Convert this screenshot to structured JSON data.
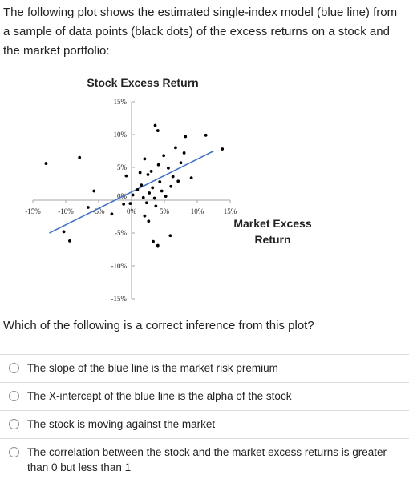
{
  "intro": "The following plot shows the estimated single-index model (blue line) from a sample of data points (black dots) of the excess returns on a stock and the market portfolio:",
  "chart_data": {
    "type": "scatter",
    "title": "Stock Excess Return",
    "xlabel": "Market Excess Return",
    "xlabel_lines": [
      "Market Excess",
      "Return"
    ],
    "ylabel": "",
    "xlim": [
      -15,
      15
    ],
    "ylim": [
      -15,
      15
    ],
    "x_ticks": [
      -15,
      -10,
      -5,
      0,
      5,
      10,
      15
    ],
    "y_ticks": [
      15,
      10,
      5,
      0,
      -5,
      -10,
      -15
    ],
    "x_tick_labels": [
      "-15%",
      "-10%",
      "-5%",
      "0%",
      "5%",
      "10%",
      "15%"
    ],
    "y_tick_labels": [
      "15%",
      "10%",
      "5%",
      "0%",
      "-5%",
      "-10%",
      "-15%"
    ],
    "grid": false,
    "line_color": "#4472c4",
    "point_color": "#000000",
    "fit_line": {
      "x": [
        -12.5,
        12.5
      ],
      "y": [
        -5.0,
        7.5
      ]
    },
    "points": [
      {
        "x": -13,
        "y": 5.6
      },
      {
        "x": -7.9,
        "y": 6.5
      },
      {
        "x": -10.3,
        "y": -4.8
      },
      {
        "x": -9.4,
        "y": -6.2
      },
      {
        "x": -6.6,
        "y": -1.1
      },
      {
        "x": -5.7,
        "y": 1.4
      },
      {
        "x": -3,
        "y": -2.1
      },
      {
        "x": -1.2,
        "y": -0.6
      },
      {
        "x": -0.8,
        "y": 3.7
      },
      {
        "x": -0.2,
        "y": -0.5
      },
      {
        "x": 0.2,
        "y": 0.8
      },
      {
        "x": 0.9,
        "y": 1.6
      },
      {
        "x": 1.3,
        "y": 4.2
      },
      {
        "x": 1.5,
        "y": 2.3
      },
      {
        "x": 1.8,
        "y": 0.4
      },
      {
        "x": 2.0,
        "y": 6.3
      },
      {
        "x": 2.3,
        "y": -0.4
      },
      {
        "x": 2.5,
        "y": 3.9
      },
      {
        "x": 2.7,
        "y": 1.1
      },
      {
        "x": 3.0,
        "y": 4.4
      },
      {
        "x": 3.2,
        "y": 1.9
      },
      {
        "x": 3.5,
        "y": 0.3
      },
      {
        "x": 3.7,
        "y": -0.9
      },
      {
        "x": 4.1,
        "y": 5.4
      },
      {
        "x": 4.3,
        "y": 2.8
      },
      {
        "x": 4.6,
        "y": 1.4
      },
      {
        "x": 4.9,
        "y": 6.8
      },
      {
        "x": 5.2,
        "y": 0.6
      },
      {
        "x": 5.6,
        "y": 4.9
      },
      {
        "x": 6.0,
        "y": 2.1
      },
      {
        "x": 6.3,
        "y": 3.6
      },
      {
        "x": 6.7,
        "y": 8.0
      },
      {
        "x": 7.1,
        "y": 2.9
      },
      {
        "x": 7.5,
        "y": 5.7
      },
      {
        "x": 3.6,
        "y": 11.4
      },
      {
        "x": 4.0,
        "y": 10.6
      },
      {
        "x": 8.0,
        "y": 7.2
      },
      {
        "x": 8.2,
        "y": 9.7
      },
      {
        "x": 9.1,
        "y": 3.4
      },
      {
        "x": 11.3,
        "y": 9.9
      },
      {
        "x": 13.8,
        "y": 7.8
      },
      {
        "x": 2.0,
        "y": -2.4
      },
      {
        "x": 2.6,
        "y": -3.2
      },
      {
        "x": 3.3,
        "y": -6.3
      },
      {
        "x": 4.0,
        "y": -6.9
      },
      {
        "x": 5.9,
        "y": -5.4
      }
    ]
  },
  "question": "Which of the following is a correct inference from this plot?",
  "options": [
    {
      "label": "The slope of the blue line is the market risk premium"
    },
    {
      "label": "The X-intercept of the blue line is the alpha of the stock"
    },
    {
      "label": "The stock is moving against the market"
    },
    {
      "label": "The correlation between the stock and the market excess returns is greater than 0 but less than 1"
    }
  ]
}
